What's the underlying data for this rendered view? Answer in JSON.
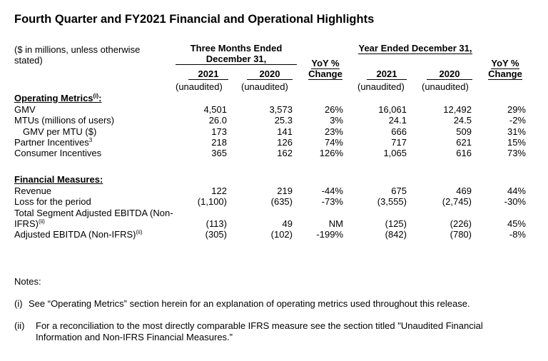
{
  "title": "Fourth Quarter and FY2021 Financial and Operational Highlights",
  "header": {
    "unit_note": "($ in millions, unless otherwise stated)",
    "groups": [
      {
        "label": "Three Months Ended December 31,",
        "years": [
          "2021",
          "2020"
        ],
        "audit": [
          "(unaudited)",
          "(unaudited)"
        ],
        "change": "YoY % Change"
      },
      {
        "label": "Year Ended December 31,",
        "years": [
          "2021",
          "2020"
        ],
        "audit": [
          "(unaudited)",
          "(unaudited)"
        ],
        "change": "YoY % Change"
      }
    ]
  },
  "sections": [
    {
      "title": "Operating Metrics",
      "note": "(i)",
      "suffix": ":",
      "rows": [
        {
          "label": "GMV",
          "values": [
            "4,501",
            "3,573",
            "26%",
            "16,061",
            "12,492",
            "29%"
          ]
        },
        {
          "label": "MTUs (millions of users)",
          "values": [
            "26.0",
            "25.3",
            "3%",
            "24.1",
            "24.5",
            "-2%"
          ]
        },
        {
          "label": "GMV per MTU ($)",
          "values": [
            "173",
            "141",
            "23%",
            "666",
            "509",
            "31%"
          ]
        },
        {
          "label": "Partner Incentives",
          "note": "3",
          "values": [
            "218",
            "126",
            "74%",
            "717",
            "621",
            "15%"
          ]
        },
        {
          "label": "Consumer Incentives",
          "values": [
            "365",
            "162",
            "126%",
            "1,065",
            "616",
            "73%"
          ]
        }
      ]
    },
    {
      "title": "Financial Measures:",
      "rows": [
        {
          "label": "Revenue",
          "values": [
            "122",
            "219",
            "-44%",
            "675",
            "469",
            "44%"
          ]
        },
        {
          "label": "Loss for the period",
          "values": [
            "(1,100)",
            "(635)",
            "-73%",
            "(3,555)",
            "(2,745)",
            "-30%"
          ]
        },
        {
          "label": "Total Segment Adjusted EBITDA (Non-IFRS)",
          "note": "(ii)",
          "values": [
            "(113)",
            "49",
            "NM",
            "(125)",
            "(226)",
            "45%"
          ]
        },
        {
          "label": "Adjusted EBITDA (Non-IFRS)",
          "note": "(ii)",
          "values": [
            "(305)",
            "(102)",
            "-199%",
            "(842)",
            "(780)",
            "-8%"
          ]
        }
      ]
    }
  ],
  "notes": {
    "title": "Notes:",
    "items": [
      {
        "marker": "(i)",
        "text": "See “Operating Metrics” section herein for an explanation of operating metrics used throughout this release."
      },
      {
        "marker": "(ii)",
        "text": "For a reconciliation to the most directly comparable IFRS measure see the section titled \"Unaudited Financial Information and Non-IFRS Financial Measures.”"
      }
    ]
  }
}
